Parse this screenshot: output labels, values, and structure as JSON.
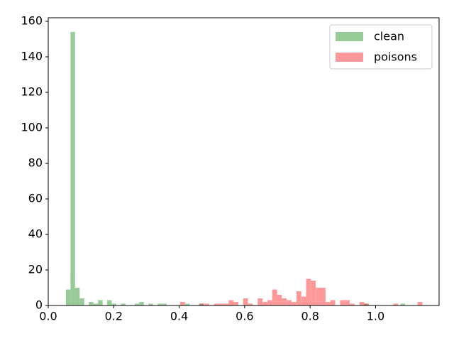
{
  "chart_data": {
    "type": "histogram",
    "series": [
      {
        "name": "clean",
        "color": "green",
        "bins": [
          0.054,
          0.068,
          0.082,
          0.096,
          0.11,
          0.124,
          0.138,
          0.152,
          0.166,
          0.18,
          0.194,
          0.208,
          0.222,
          0.236,
          0.25,
          0.264,
          0.278,
          0.292,
          0.306,
          0.32,
          0.334,
          0.348,
          0.362,
          0.376,
          0.39,
          0.404,
          0.418,
          0.432,
          0.446,
          0.46,
          0.474,
          0.488,
          0.502,
          0.516,
          0.53,
          0.544,
          0.558,
          0.572,
          0.586,
          0.6,
          0.614,
          0.628,
          0.642,
          0.656,
          0.67,
          0.684,
          0.698,
          0.712,
          0.726,
          0.74,
          0.754,
          0.768,
          0.782,
          0.796,
          0.81,
          0.824,
          0.838,
          0.852,
          0.866,
          0.88,
          0.894,
          0.908,
          0.922,
          0.936,
          0.95,
          0.964,
          0.978,
          0.992,
          1.006,
          1.02,
          1.034,
          1.048,
          1.062,
          1.076,
          1.09,
          1.104
        ],
        "values": [
          9,
          154,
          10,
          4,
          0,
          2,
          1,
          3,
          0,
          3,
          1,
          0,
          1,
          0,
          0,
          1,
          2,
          0,
          1,
          0,
          1,
          1,
          0,
          0,
          0,
          0,
          1,
          0,
          0,
          1,
          0,
          0,
          0,
          0,
          0,
          0,
          0,
          0,
          0,
          0,
          0,
          0,
          0,
          0,
          0,
          0,
          0,
          0,
          0,
          0,
          0,
          0,
          0,
          0,
          0,
          0,
          0,
          0,
          0,
          0,
          0,
          0,
          0,
          0,
          0,
          1,
          0,
          0,
          0,
          0,
          0,
          0,
          0,
          1,
          0
        ]
      },
      {
        "name": "poisons",
        "color": "red",
        "bins": [
          0.403,
          0.4178,
          0.4326,
          0.4474,
          0.4622,
          0.477,
          0.4918,
          0.5066,
          0.5214,
          0.5362,
          0.551,
          0.5658,
          0.5806,
          0.5954,
          0.6102,
          0.625,
          0.6398,
          0.6546,
          0.6694,
          0.6842,
          0.699,
          0.7138,
          0.7286,
          0.7434,
          0.7582,
          0.773,
          0.7878,
          0.8026,
          0.8174,
          0.8322,
          0.847,
          0.8618,
          0.8766,
          0.8914,
          0.9062,
          0.921,
          0.9358,
          0.9506,
          0.9654,
          0.9802,
          0.995,
          1.0098,
          1.0246,
          1.0394,
          1.0542,
          1.069,
          1.0838,
          1.0986,
          1.1134,
          1.1282,
          1.143
        ],
        "values": [
          2,
          0,
          0,
          0,
          1,
          1,
          0,
          1,
          1,
          1,
          3,
          2,
          0,
          4,
          1,
          0,
          4,
          2,
          3,
          9,
          6,
          4,
          3,
          2,
          8,
          5,
          15,
          14,
          10,
          10,
          2,
          3,
          0,
          3,
          3,
          1,
          0,
          2,
          1,
          0,
          0,
          0,
          0,
          0,
          1,
          0,
          0,
          0,
          0,
          2
        ]
      }
    ],
    "alpha": 0.4,
    "xlim": [
      0,
      1.194
    ],
    "ylim": [
      0,
      162
    ],
    "xticks": [
      {
        "value": 0,
        "label": "0.0"
      },
      0.2,
      0.4,
      0.6,
      0.8,
      {
        "value": 1,
        "label": "1.0"
      }
    ],
    "yticks": [
      0,
      20,
      40,
      60,
      80,
      100,
      120,
      140,
      160
    ],
    "legend": "upper right"
  }
}
